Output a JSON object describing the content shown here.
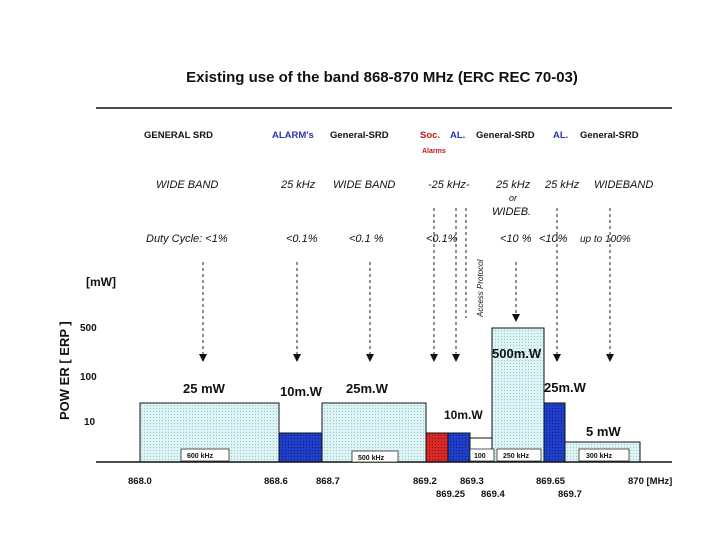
{
  "title": "Existing use of the band 868-870 MHz (ERC REC 70-03)",
  "y_axis_label": "POW ER  [ ERP ]",
  "y_unit": "[mW]",
  "y_ticks": [
    "500",
    "100",
    "10"
  ],
  "header_labels": [
    {
      "text": "GENERAL SRD",
      "color": "#111111"
    },
    {
      "text": "ALARM's",
      "color": "#2b35b8"
    },
    {
      "text": "General-SRD",
      "color": "#111111"
    },
    {
      "text": "Soc.",
      "color": "#c01818"
    },
    {
      "text": "AL.",
      "color": "#2b35b8"
    },
    {
      "text": "General-SRD",
      "color": "#111111"
    },
    {
      "text": "AL.",
      "color": "#2b35b8"
    },
    {
      "text": "General-SRD",
      "color": "#111111"
    }
  ],
  "alarms_label": "Alarms",
  "bandwidth_labels": [
    "WIDE BAND",
    "25 kHz",
    "WIDE BAND",
    "-25 kHz-",
    "25 kHz",
    "25 kHz",
    "WIDEBAND"
  ],
  "or_label": "or",
  "wideb_label": "WIDEB.",
  "duty_cycles": [
    "Duty Cycle:  <1%",
    "<0.1%",
    "<0.1 %",
    "<0.1%",
    "<10 %",
    "<10%",
    "up to 100%"
  ],
  "access_protocol": "Access Protocol",
  "power_labels": [
    "25 mW",
    "10m.W",
    "25m.W",
    "10m.W",
    "500m.W",
    "25m.W",
    "5 mW"
  ],
  "block_width_labels": [
    "600 kHz",
    "500 kHz",
    "100",
    "250 kHz",
    "300 kHz"
  ],
  "x_axis_labels": [
    "868.0",
    "868.6",
    "868.7",
    "869.2",
    "869.3",
    "869.25",
    "869.4",
    "869.65",
    "869.7",
    "870 [MHz]"
  ],
  "colors": {
    "wideband": "#dcf4f6",
    "alarm": "#1f3fc8",
    "social": "#d82828",
    "grid_dash": "#222222"
  },
  "chart_data": {
    "type": "spectrum-allocation",
    "title": "Existing use of the band 868-870 MHz (ERC REC 70-03)",
    "xlabel": "[MHz]",
    "ylabel": "POWER [ERP] [mW]",
    "xlim": [
      868.0,
      870.0
    ],
    "y_levels_mW": [
      10,
      100,
      500
    ],
    "bands": [
      {
        "from": 868.0,
        "to": 868.6,
        "power_mW": 25,
        "use": "General SRD",
        "bandwidth": "600 kHz",
        "duty_cycle": "<1%",
        "kind": "wideband"
      },
      {
        "from": 868.6,
        "to": 868.7,
        "power_mW": 10,
        "use": "Alarms",
        "bandwidth": "25 kHz",
        "duty_cycle": "<0.1%",
        "kind": "alarm"
      },
      {
        "from": 868.7,
        "to": 869.2,
        "power_mW": 25,
        "use": "General SRD",
        "bandwidth": "500 kHz",
        "duty_cycle": "<0.1%",
        "kind": "wideband"
      },
      {
        "from": 869.2,
        "to": 869.25,
        "power_mW": 10,
        "use": "Social Alarms",
        "bandwidth": "25 kHz",
        "duty_cycle": "<0.1%",
        "kind": "social"
      },
      {
        "from": 869.25,
        "to": 869.3,
        "power_mW": 10,
        "use": "Alarms",
        "bandwidth": "25 kHz",
        "duty_cycle": "<0.1%",
        "kind": "alarm"
      },
      {
        "from": 869.3,
        "to": 869.4,
        "power_mW": 10,
        "use": "General SRD",
        "bandwidth": "100 kHz",
        "duty_cycle": "Access Protocol",
        "kind": "wideband"
      },
      {
        "from": 869.4,
        "to": 869.65,
        "power_mW": 500,
        "use": "General SRD",
        "bandwidth": "250 kHz",
        "duty_cycle": "<10%",
        "kind": "wideband"
      },
      {
        "from": 869.65,
        "to": 869.7,
        "power_mW": 25,
        "use": "Alarms",
        "bandwidth": "25 kHz",
        "duty_cycle": "<10%",
        "kind": "alarm"
      },
      {
        "from": 869.7,
        "to": 870.0,
        "power_mW": 5,
        "use": "General SRD",
        "bandwidth": "300 kHz",
        "duty_cycle": "up to 100%",
        "kind": "wideband"
      }
    ]
  }
}
